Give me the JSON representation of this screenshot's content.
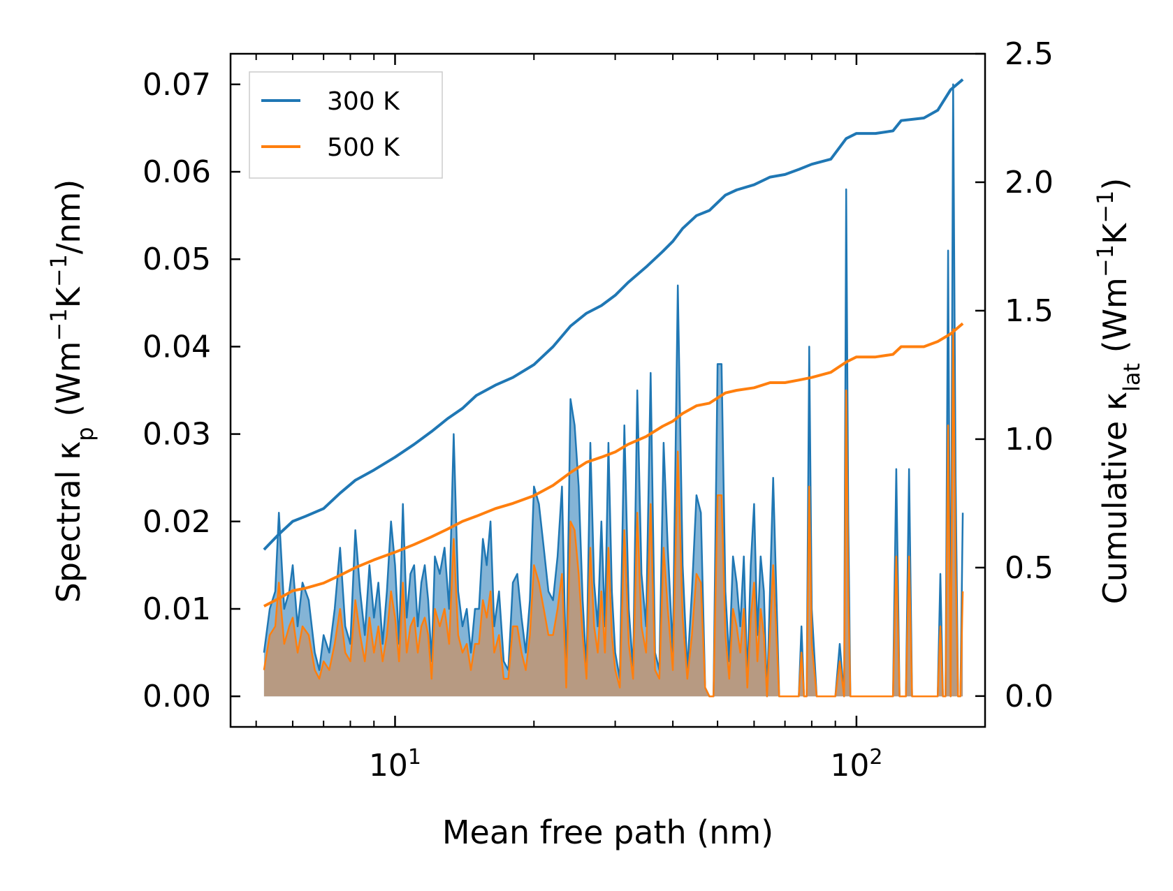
{
  "chart_data": {
    "type": "line",
    "title": "",
    "xlabel": "Mean free path (nm)",
    "xscale": "log",
    "xlim": [
      4.4,
      190
    ],
    "x_ticks": [
      {
        "value": 10,
        "base": "10",
        "exp": "1"
      },
      {
        "value": 100,
        "base": "10",
        "exp": "2"
      }
    ],
    "ylabel_left": {
      "prefix": "Spectral κ",
      "sub": "p",
      "unit_a": " (Wm",
      "sup_a": "−1",
      "unit_b": "K",
      "sup_b": "−1",
      "unit_c": "/nm)"
    },
    "ylim_left": [
      -0.0035,
      0.0735
    ],
    "yticks_left": [
      "0.00",
      "0.01",
      "0.02",
      "0.03",
      "0.04",
      "0.05",
      "0.06",
      "0.07"
    ],
    "yticks_left_values": [
      0,
      0.01,
      0.02,
      0.03,
      0.04,
      0.05,
      0.06,
      0.07
    ],
    "ylabel_right": {
      "prefix": "Cumulative κ",
      "sub": "lat",
      "unit_a": " (Wm",
      "sup_a": "−1",
      "unit_b": "K",
      "sup_b": "−1",
      "unit_c": ")"
    },
    "ylim_right": [
      -0.12,
      2.5
    ],
    "yticks_right": [
      "0.0",
      "0.5",
      "1.0",
      "1.5",
      "2.0",
      "2.5"
    ],
    "yticks_right_values": [
      0,
      0.5,
      1.0,
      1.5,
      2.0,
      2.5
    ],
    "legend_position": "top-left",
    "legend": [
      "300 K",
      "500 K"
    ],
    "colors": {
      "s300": "#1f77b4",
      "s500": "#ff7f0e",
      "fill300": "#1f77b4",
      "fill500": "#d8884a"
    },
    "spectral_series": [
      {
        "name": "300 K",
        "x": [
          5.2,
          5.35,
          5.5,
          5.6,
          5.75,
          5.9,
          6.0,
          6.15,
          6.3,
          6.5,
          6.7,
          6.85,
          7.0,
          7.2,
          7.4,
          7.6,
          7.8,
          8.0,
          8.2,
          8.4,
          8.6,
          8.8,
          9.0,
          9.2,
          9.4,
          9.6,
          9.8,
          10.0,
          10.2,
          10.4,
          10.6,
          10.8,
          11.0,
          11.2,
          11.4,
          11.6,
          11.8,
          12.0,
          12.2,
          12.5,
          12.8,
          13.1,
          13.4,
          13.7,
          14.0,
          14.3,
          14.6,
          14.9,
          15.2,
          15.5,
          15.8,
          16.1,
          16.4,
          16.8,
          17.2,
          17.6,
          18.0,
          18.4,
          18.8,
          19.2,
          19.6,
          20.0,
          20.5,
          21.0,
          21.5,
          22.0,
          22.5,
          23.0,
          23.5,
          24.0,
          24.5,
          25.0,
          25.5,
          26.0,
          26.5,
          27.0,
          27.5,
          28.0,
          28.5,
          29.0,
          29.5,
          30.0,
          30.7,
          31.4,
          32.1,
          32.8,
          33.5,
          34.2,
          35.0,
          35.8,
          36.6,
          37.4,
          38.2,
          39.0,
          40.0,
          41.0,
          42.0,
          43.0,
          44.0,
          45.0,
          46.0,
          47.0,
          48.0,
          49.0,
          50.0,
          51.0,
          52.0,
          53.0,
          54.0,
          55.0,
          56.0,
          57.0,
          58.0,
          59.0,
          60.0,
          61.0,
          62.0,
          63.0,
          64.0,
          66.0,
          68.0,
          70.0,
          72.0,
          74.0,
          75.0,
          76.0,
          77.0,
          78.0,
          79.0,
          80.0,
          82.0,
          84.0,
          86.0,
          88.0,
          90.0,
          92.0,
          94.0,
          95.0,
          96.0,
          97.0,
          98.0,
          100.0,
          105.0,
          110.0,
          115.0,
          120.0,
          122.0,
          124.0,
          126.0,
          128.0,
          130.0,
          132.0,
          135.0,
          138.0,
          142.0,
          146.0,
          150.0,
          152.0,
          154.0,
          156.0,
          158.0,
          160.0,
          162.0,
          164.0,
          166.0,
          168.0,
          170.0
        ],
        "y": [
          0.005,
          0.01,
          0.012,
          0.021,
          0.01,
          0.012,
          0.015,
          0.008,
          0.013,
          0.011,
          0.005,
          0.003,
          0.007,
          0.005,
          0.01,
          0.017,
          0.008,
          0.006,
          0.019,
          0.012,
          0.007,
          0.015,
          0.009,
          0.013,
          0.006,
          0.012,
          0.02,
          0.015,
          0.006,
          0.022,
          0.009,
          0.014,
          0.015,
          0.008,
          0.013,
          0.015,
          0.011,
          0.004,
          0.016,
          0.014,
          0.017,
          0.01,
          0.03,
          0.012,
          0.008,
          0.01,
          0.005,
          0.01,
          0.01,
          0.018,
          0.015,
          0.02,
          0.008,
          0.012,
          0.004,
          0.003,
          0.013,
          0.014,
          0.009,
          0.005,
          0.011,
          0.024,
          0.022,
          0.017,
          0.012,
          0.011,
          0.016,
          0.024,
          0.002,
          0.034,
          0.031,
          0.024,
          0.011,
          0.003,
          0.029,
          0.013,
          0.008,
          0.02,
          0.008,
          0.029,
          0.012,
          0.005,
          0.002,
          0.031,
          0.01,
          0.003,
          0.035,
          0.014,
          0.008,
          0.037,
          0.005,
          0.003,
          0.029,
          0.017,
          0.005,
          0.047,
          0.015,
          0.003,
          0.012,
          0.023,
          0.021,
          0.001,
          0.0,
          0.0,
          0.038,
          0.038,
          0.012,
          0.004,
          0.016,
          0.013,
          0.008,
          0.016,
          0.002,
          0.015,
          0.022,
          0.007,
          0.016,
          0.012,
          0.0,
          0.025,
          0.0,
          0.0,
          0.0,
          0.0,
          0.0,
          0.008,
          0.0,
          0.0,
          0.04,
          0.01,
          0.0,
          0.0,
          0.0,
          0.0,
          0.0,
          0.006,
          0.0,
          0.058,
          0.02,
          0.0,
          0.0,
          0.0,
          0.0,
          0.0,
          0.0,
          0.0,
          0.026,
          0.0,
          0.0,
          0.0,
          0.026,
          0.0,
          0.0,
          0.0,
          0.0,
          0.0,
          0.0,
          0.014,
          0.0,
          0.0,
          0.051,
          0.0,
          0.07,
          0.025,
          0.0,
          0.0,
          0.021
        ]
      },
      {
        "name": "500 K",
        "x": [
          5.2,
          5.35,
          5.5,
          5.6,
          5.75,
          5.9,
          6.0,
          6.15,
          6.3,
          6.5,
          6.7,
          6.85,
          7.0,
          7.2,
          7.4,
          7.6,
          7.8,
          8.0,
          8.2,
          8.4,
          8.6,
          8.8,
          9.0,
          9.2,
          9.4,
          9.6,
          9.8,
          10.0,
          10.2,
          10.4,
          10.6,
          10.8,
          11.0,
          11.2,
          11.4,
          11.6,
          11.8,
          12.0,
          12.2,
          12.5,
          12.8,
          13.1,
          13.4,
          13.7,
          14.0,
          14.3,
          14.6,
          14.9,
          15.2,
          15.5,
          15.8,
          16.1,
          16.4,
          16.8,
          17.2,
          17.6,
          18.0,
          18.4,
          18.8,
          19.2,
          19.6,
          20.0,
          20.5,
          21.0,
          21.5,
          22.0,
          22.5,
          23.0,
          23.5,
          24.0,
          24.5,
          25.0,
          25.5,
          26.0,
          26.5,
          27.0,
          27.5,
          28.0,
          28.5,
          29.0,
          29.5,
          30.0,
          30.7,
          31.4,
          32.1,
          32.8,
          33.5,
          34.2,
          35.0,
          35.8,
          36.6,
          37.4,
          38.2,
          39.0,
          40.0,
          41.0,
          42.0,
          43.0,
          44.0,
          45.0,
          46.0,
          47.0,
          48.0,
          49.0,
          50.0,
          51.0,
          52.0,
          53.0,
          54.0,
          55.0,
          56.0,
          57.0,
          58.0,
          59.0,
          60.0,
          61.0,
          62.0,
          63.0,
          64.0,
          66.0,
          68.0,
          70.0,
          72.0,
          74.0,
          75.0,
          76.0,
          77.0,
          78.0,
          79.0,
          80.0,
          82.0,
          84.0,
          86.0,
          88.0,
          90.0,
          92.0,
          94.0,
          95.0,
          96.0,
          97.0,
          98.0,
          100.0,
          105.0,
          110.0,
          115.0,
          120.0,
          122.0,
          124.0,
          126.0,
          128.0,
          130.0,
          132.0,
          135.0,
          138.0,
          142.0,
          146.0,
          150.0,
          152.0,
          154.0,
          156.0,
          158.0,
          160.0,
          162.0,
          164.0,
          166.0,
          168.0,
          170.0
        ],
        "y": [
          0.003,
          0.007,
          0.008,
          0.013,
          0.006,
          0.008,
          0.009,
          0.005,
          0.008,
          0.007,
          0.003,
          0.002,
          0.004,
          0.003,
          0.006,
          0.01,
          0.005,
          0.004,
          0.011,
          0.007,
          0.004,
          0.009,
          0.005,
          0.008,
          0.004,
          0.007,
          0.012,
          0.009,
          0.004,
          0.013,
          0.005,
          0.008,
          0.009,
          0.005,
          0.008,
          0.009,
          0.007,
          0.002,
          0.01,
          0.008,
          0.01,
          0.006,
          0.018,
          0.007,
          0.005,
          0.006,
          0.003,
          0.006,
          0.006,
          0.011,
          0.009,
          0.012,
          0.005,
          0.007,
          0.002,
          0.002,
          0.008,
          0.008,
          0.005,
          0.003,
          0.007,
          0.015,
          0.013,
          0.01,
          0.007,
          0.007,
          0.01,
          0.014,
          0.001,
          0.02,
          0.019,
          0.014,
          0.007,
          0.002,
          0.017,
          0.008,
          0.005,
          0.012,
          0.005,
          0.017,
          0.007,
          0.003,
          0.001,
          0.019,
          0.006,
          0.002,
          0.021,
          0.008,
          0.005,
          0.022,
          0.003,
          0.002,
          0.017,
          0.01,
          0.003,
          0.028,
          0.009,
          0.002,
          0.007,
          0.014,
          0.013,
          0.001,
          0.0,
          0.0,
          0.023,
          0.023,
          0.007,
          0.002,
          0.01,
          0.008,
          0.005,
          0.01,
          0.001,
          0.009,
          0.013,
          0.004,
          0.01,
          0.007,
          0.0,
          0.015,
          0.0,
          0.0,
          0.0,
          0.0,
          0.0,
          0.005,
          0.0,
          0.0,
          0.024,
          0.006,
          0.0,
          0.0,
          0.0,
          0.0,
          0.0,
          0.004,
          0.0,
          0.035,
          0.012,
          0.0,
          0.0,
          0.0,
          0.0,
          0.0,
          0.0,
          0.0,
          0.016,
          0.0,
          0.0,
          0.0,
          0.016,
          0.0,
          0.0,
          0.0,
          0.0,
          0.0,
          0.0,
          0.008,
          0.0,
          0.0,
          0.031,
          0.0,
          0.042,
          0.015,
          0.0,
          0.0,
          0.012
        ]
      }
    ],
    "cumulative_series": [
      {
        "name": "300 K",
        "x": [
          5.2,
          5.6,
          6.0,
          6.4,
          7.0,
          7.6,
          8.2,
          9.0,
          10.0,
          11.0,
          12.0,
          13.0,
          14.0,
          15.0,
          16.5,
          18.0,
          20.0,
          22.0,
          24.0,
          26.0,
          28.0,
          30.0,
          32.0,
          35.0,
          38.0,
          40.0,
          42.0,
          45.0,
          48.0,
          52.0,
          55.0,
          60.0,
          65.0,
          70.0,
          75.0,
          80.0,
          88.0,
          95.0,
          100.0,
          110.0,
          120.0,
          125.0,
          140.0,
          150.0,
          160.0,
          170.0
        ],
        "y": [
          0.57,
          0.63,
          0.68,
          0.7,
          0.73,
          0.79,
          0.84,
          0.88,
          0.93,
          0.98,
          1.03,
          1.08,
          1.12,
          1.17,
          1.21,
          1.24,
          1.29,
          1.36,
          1.44,
          1.49,
          1.52,
          1.56,
          1.61,
          1.67,
          1.73,
          1.77,
          1.82,
          1.87,
          1.89,
          1.95,
          1.97,
          1.99,
          2.02,
          2.03,
          2.05,
          2.07,
          2.09,
          2.17,
          2.19,
          2.19,
          2.2,
          2.24,
          2.25,
          2.28,
          2.36,
          2.4
        ]
      },
      {
        "name": "500 K",
        "x": [
          5.2,
          5.6,
          6.0,
          6.4,
          7.0,
          7.6,
          8.2,
          9.0,
          10.0,
          11.0,
          12.0,
          13.0,
          14.0,
          15.0,
          16.5,
          18.0,
          20.0,
          22.0,
          24.0,
          26.0,
          28.0,
          30.0,
          32.0,
          35.0,
          38.0,
          40.0,
          42.0,
          45.0,
          48.0,
          52.0,
          55.0,
          60.0,
          65.0,
          70.0,
          75.0,
          80.0,
          88.0,
          95.0,
          100.0,
          110.0,
          120.0,
          125.0,
          140.0,
          150.0,
          160.0,
          170.0
        ],
        "y": [
          0.35,
          0.38,
          0.41,
          0.42,
          0.44,
          0.47,
          0.5,
          0.53,
          0.56,
          0.59,
          0.62,
          0.65,
          0.68,
          0.7,
          0.73,
          0.75,
          0.78,
          0.82,
          0.87,
          0.91,
          0.93,
          0.95,
          0.98,
          1.01,
          1.05,
          1.07,
          1.1,
          1.13,
          1.14,
          1.18,
          1.19,
          1.2,
          1.22,
          1.22,
          1.23,
          1.24,
          1.26,
          1.3,
          1.32,
          1.32,
          1.33,
          1.36,
          1.36,
          1.38,
          1.41,
          1.45
        ]
      }
    ]
  }
}
